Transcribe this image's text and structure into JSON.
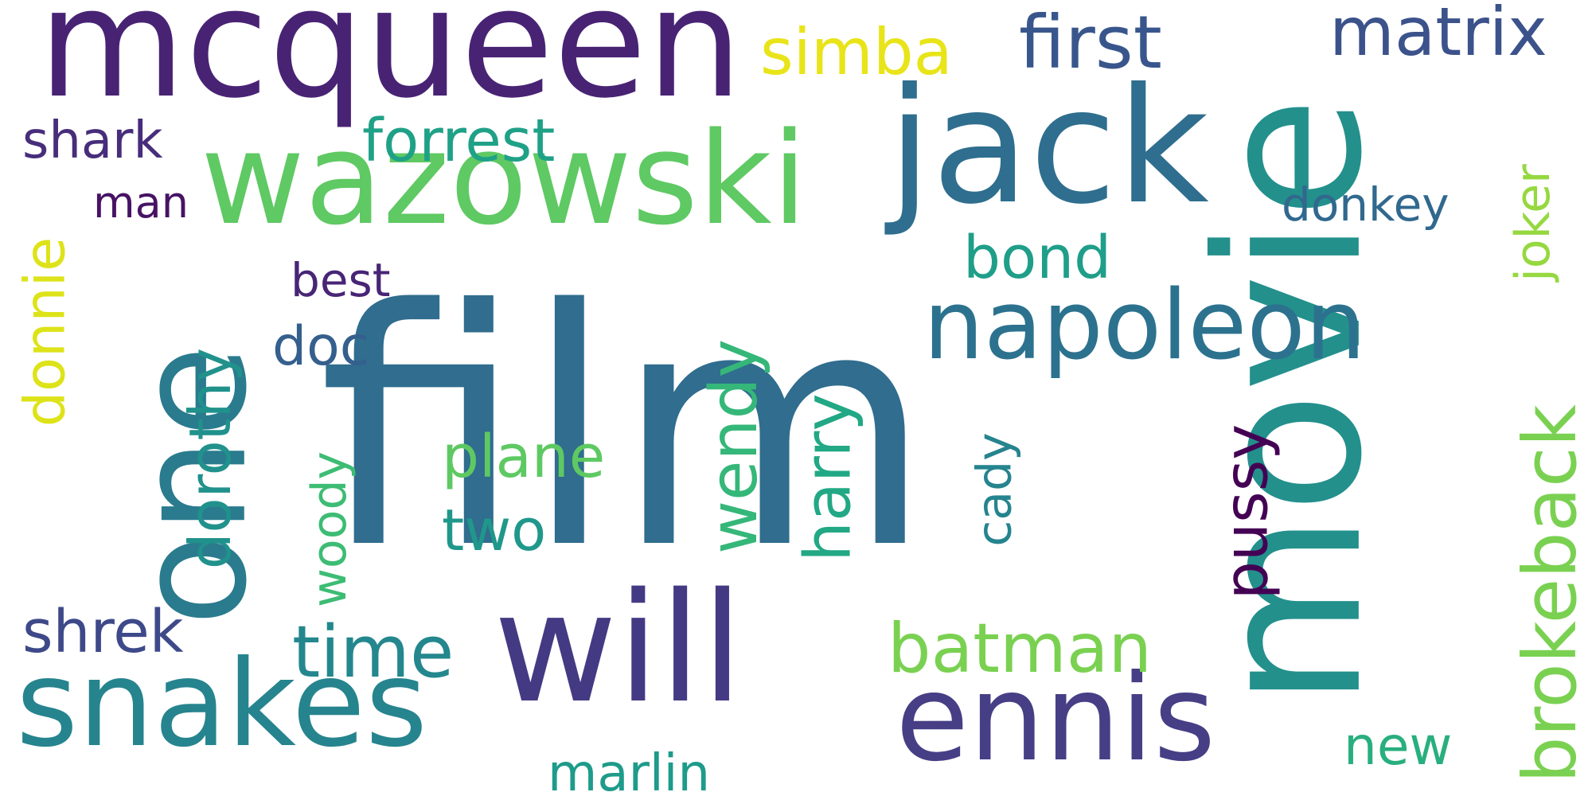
{
  "word_cloud": {
    "words": [
      {
        "text": "film",
        "color": "#306d8e",
        "vertical": false
      },
      {
        "text": "movie",
        "color": "#23908c",
        "vertical": true
      },
      {
        "text": "mcqueen",
        "color": "#482374",
        "vertical": false
      },
      {
        "text": "wazowski",
        "color": "#5fc963",
        "vertical": false
      },
      {
        "text": "jack",
        "color": "#2f6e8e",
        "vertical": false
      },
      {
        "text": "one",
        "color": "#2a7b8e",
        "vertical": true
      },
      {
        "text": "will",
        "color": "#443a83",
        "vertical": false
      },
      {
        "text": "snakes",
        "color": "#26848e",
        "vertical": false
      },
      {
        "text": "ennis",
        "color": "#463f85",
        "vertical": false
      },
      {
        "text": "napoleon",
        "color": "#2c728e",
        "vertical": false
      },
      {
        "text": "brokeback",
        "color": "#7ad151",
        "vertical": true
      },
      {
        "text": "first",
        "color": "#39568c",
        "vertical": false
      },
      {
        "text": "simba",
        "color": "#e8e419",
        "vertical": false
      },
      {
        "text": "matrix",
        "color": "#3b528b",
        "vertical": false
      },
      {
        "text": "batman",
        "color": "#7ad151",
        "vertical": false
      },
      {
        "text": "time",
        "color": "#24878e",
        "vertical": false
      },
      {
        "text": "wendy",
        "color": "#35b779",
        "vertical": true
      },
      {
        "text": "harry",
        "color": "#22a884",
        "vertical": true
      },
      {
        "text": "dorothy",
        "color": "#21918c",
        "vertical": true
      },
      {
        "text": "donnie",
        "color": "#dde318",
        "vertical": true
      },
      {
        "text": "forrest",
        "color": "#1fa187",
        "vertical": false
      },
      {
        "text": "pussy",
        "color": "#440154",
        "vertical": true
      },
      {
        "text": "bond",
        "color": "#1f9e89",
        "vertical": false
      },
      {
        "text": "plane",
        "color": "#5ec962",
        "vertical": false
      },
      {
        "text": "two",
        "color": "#1f988b",
        "vertical": false
      },
      {
        "text": "shrek",
        "color": "#3e4989",
        "vertical": false
      },
      {
        "text": "marlin",
        "color": "#1e9b8a",
        "vertical": false
      },
      {
        "text": "new",
        "color": "#29af7f",
        "vertical": false
      },
      {
        "text": "joker",
        "color": "#95d840",
        "vertical": true
      },
      {
        "text": "shark",
        "color": "#472d7b",
        "vertical": false
      },
      {
        "text": "woody",
        "color": "#3dbc74",
        "vertical": true
      },
      {
        "text": "cady",
        "color": "#25848e",
        "vertical": true
      },
      {
        "text": "donkey",
        "color": "#31688e",
        "vertical": false
      },
      {
        "text": "doc",
        "color": "#355f8d",
        "vertical": false
      },
      {
        "text": "best",
        "color": "#482576",
        "vertical": false
      },
      {
        "text": "man",
        "color": "#471365",
        "vertical": false
      }
    ]
  }
}
